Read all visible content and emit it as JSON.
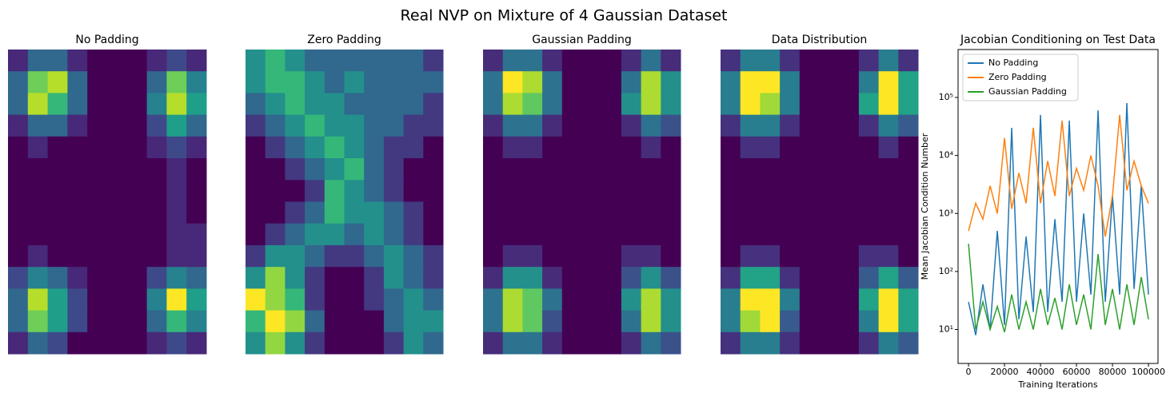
{
  "title": "Real NVP on Mixture of 4 Gaussian Dataset",
  "chart_data": [
    {
      "type": "heatmap",
      "title": "No Padding",
      "colormap": "viridis",
      "values": [
        [
          1,
          3,
          3,
          1,
          0,
          0,
          0,
          1,
          2,
          1
        ],
        [
          3,
          7,
          8,
          3,
          0,
          0,
          0,
          3,
          7,
          4
        ],
        [
          3,
          8,
          6,
          3,
          0,
          0,
          0,
          4,
          8,
          5
        ],
        [
          1,
          3,
          3,
          1,
          0,
          0,
          0,
          2,
          5,
          3
        ],
        [
          0,
          1,
          0,
          0,
          0,
          0,
          0,
          1,
          2,
          1
        ],
        [
          0,
          0,
          0,
          0,
          0,
          0,
          0,
          0,
          1,
          0
        ],
        [
          0,
          0,
          0,
          0,
          0,
          0,
          0,
          0,
          1,
          0
        ],
        [
          0,
          0,
          0,
          0,
          0,
          0,
          0,
          0,
          1,
          0
        ],
        [
          0,
          0,
          0,
          0,
          0,
          0,
          0,
          0,
          1,
          1
        ],
        [
          0,
          1,
          0,
          0,
          0,
          0,
          0,
          0,
          1,
          1
        ],
        [
          2,
          4,
          3,
          1,
          0,
          0,
          0,
          2,
          4,
          3
        ],
        [
          3,
          8,
          5,
          2,
          0,
          0,
          0,
          4,
          9,
          5
        ],
        [
          3,
          7,
          5,
          2,
          0,
          0,
          0,
          3,
          6,
          4
        ],
        [
          1,
          3,
          2,
          0,
          0,
          0,
          0,
          1,
          2,
          1
        ]
      ]
    },
    {
      "type": "heatmap",
      "title": "Zero Padding",
      "colormap": "viridis",
      "values": [
        [
          3,
          4,
          3,
          2,
          2,
          2,
          2,
          2,
          2,
          1
        ],
        [
          3,
          4,
          4,
          3,
          2,
          3,
          2,
          2,
          2,
          2
        ],
        [
          2,
          3,
          4,
          3,
          3,
          2,
          2,
          2,
          2,
          1
        ],
        [
          1,
          2,
          3,
          4,
          3,
          3,
          2,
          2,
          1,
          1
        ],
        [
          0,
          1,
          2,
          3,
          4,
          3,
          2,
          1,
          1,
          0
        ],
        [
          0,
          0,
          1,
          2,
          3,
          4,
          2,
          1,
          0,
          0
        ],
        [
          0,
          0,
          0,
          1,
          4,
          3,
          2,
          1,
          0,
          0
        ],
        [
          0,
          0,
          1,
          2,
          4,
          3,
          3,
          2,
          1,
          0
        ],
        [
          0,
          1,
          2,
          3,
          3,
          2,
          3,
          2,
          1,
          0
        ],
        [
          1,
          3,
          3,
          2,
          1,
          1,
          2,
          3,
          2,
          1
        ],
        [
          3,
          5,
          3,
          1,
          0,
          0,
          1,
          3,
          2,
          1
        ],
        [
          6,
          5,
          4,
          1,
          0,
          0,
          1,
          2,
          3,
          2
        ],
        [
          4,
          6,
          5,
          2,
          0,
          0,
          0,
          2,
          3,
          3
        ],
        [
          3,
          5,
          3,
          1,
          0,
          0,
          0,
          1,
          3,
          2
        ]
      ]
    },
    {
      "type": "heatmap",
      "title": "Gaussian Padding",
      "colormap": "viridis",
      "values": [
        [
          1,
          3,
          3,
          1,
          0,
          0,
          0,
          1,
          3,
          1
        ],
        [
          3,
          8,
          7,
          3,
          0,
          0,
          0,
          3,
          7,
          4
        ],
        [
          3,
          7,
          6,
          3,
          0,
          0,
          0,
          4,
          7,
          4
        ],
        [
          1,
          3,
          3,
          1,
          0,
          0,
          0,
          1,
          3,
          2
        ],
        [
          0,
          1,
          1,
          0,
          0,
          0,
          0,
          0,
          1,
          0
        ],
        [
          0,
          0,
          0,
          0,
          0,
          0,
          0,
          0,
          0,
          0
        ],
        [
          0,
          0,
          0,
          0,
          0,
          0,
          0,
          0,
          0,
          0
        ],
        [
          0,
          0,
          0,
          0,
          0,
          0,
          0,
          0,
          0,
          0
        ],
        [
          0,
          0,
          0,
          0,
          0,
          0,
          0,
          0,
          0,
          0
        ],
        [
          0,
          1,
          1,
          0,
          0,
          0,
          0,
          1,
          1,
          0
        ],
        [
          1,
          4,
          4,
          1,
          0,
          0,
          0,
          2,
          4,
          2
        ],
        [
          3,
          7,
          6,
          3,
          0,
          0,
          0,
          4,
          7,
          4
        ],
        [
          3,
          7,
          6,
          2,
          0,
          0,
          0,
          3,
          7,
          4
        ],
        [
          1,
          3,
          3,
          1,
          0,
          0,
          0,
          1,
          3,
          2
        ]
      ]
    },
    {
      "type": "heatmap",
      "title": "Data Distribution",
      "colormap": "viridis",
      "values": [
        [
          1,
          3,
          3,
          1,
          0,
          0,
          0,
          1,
          3,
          1
        ],
        [
          3,
          7,
          7,
          3,
          0,
          0,
          0,
          3,
          7,
          4
        ],
        [
          3,
          7,
          6,
          3,
          0,
          0,
          0,
          4,
          7,
          4
        ],
        [
          1,
          3,
          3,
          1,
          0,
          0,
          0,
          1,
          3,
          2
        ],
        [
          0,
          1,
          1,
          0,
          0,
          0,
          0,
          0,
          1,
          0
        ],
        [
          0,
          0,
          0,
          0,
          0,
          0,
          0,
          0,
          0,
          0
        ],
        [
          0,
          0,
          0,
          0,
          0,
          0,
          0,
          0,
          0,
          0
        ],
        [
          0,
          0,
          0,
          0,
          0,
          0,
          0,
          0,
          0,
          0
        ],
        [
          0,
          0,
          0,
          0,
          0,
          0,
          0,
          0,
          0,
          0
        ],
        [
          0,
          1,
          1,
          0,
          0,
          0,
          0,
          1,
          1,
          0
        ],
        [
          1,
          4,
          4,
          1,
          0,
          0,
          0,
          2,
          4,
          2
        ],
        [
          3,
          7,
          7,
          3,
          0,
          0,
          0,
          4,
          7,
          4
        ],
        [
          3,
          6,
          7,
          2,
          0,
          0,
          0,
          3,
          7,
          4
        ],
        [
          1,
          3,
          3,
          1,
          0,
          0,
          0,
          1,
          3,
          2
        ]
      ]
    },
    {
      "type": "line",
      "title": "Jacobian Conditioning on Test Data",
      "x_label": "Training Iterations",
      "y_label": "Mean Jacobian Condition Number",
      "log_y": true,
      "legend": "upper-left",
      "x": [
        0,
        4000,
        8000,
        12000,
        16000,
        20000,
        24000,
        28000,
        32000,
        36000,
        40000,
        44000,
        48000,
        52000,
        56000,
        60000,
        64000,
        68000,
        72000,
        76000,
        80000,
        84000,
        88000,
        92000,
        96000,
        100000
      ],
      "xlim": [
        -5800,
        105300
      ],
      "xticks": [
        0,
        20000,
        40000,
        60000,
        80000,
        100000
      ],
      "ylim": [
        2.6,
        670000
      ],
      "yticks": [
        {
          "value": 10,
          "label": "10¹"
        },
        {
          "value": 100,
          "label": "10²"
        },
        {
          "value": 1000,
          "label": "10³"
        },
        {
          "value": 10000,
          "label": "10⁴"
        },
        {
          "value": 100000,
          "label": "10⁵"
        }
      ],
      "series": [
        {
          "name": "No Padding",
          "color": "#1f77b4",
          "values": [
            30,
            8,
            60,
            10,
            500,
            12,
            30000,
            15,
            400,
            20,
            50000,
            20,
            800,
            30,
            40000,
            30,
            1000,
            40,
            60000,
            30,
            2000,
            40,
            80000,
            50,
            3000,
            40
          ]
        },
        {
          "name": "Zero Padding",
          "color": "#ff7f0e",
          "values": [
            500,
            1500,
            800,
            3000,
            1000,
            20000,
            1200,
            5000,
            1500,
            30000,
            1500,
            8000,
            2000,
            40000,
            2000,
            6000,
            2500,
            10000,
            3000,
            400,
            2000,
            50000,
            2500,
            8000,
            3000,
            1500
          ]
        },
        {
          "name": "Gaussian Padding",
          "color": "#2ca02c",
          "values": [
            300,
            10,
            30,
            10,
            25,
            9,
            40,
            10,
            30,
            10,
            50,
            12,
            35,
            10,
            60,
            12,
            40,
            10,
            200,
            12,
            50,
            10,
            60,
            12,
            80,
            15
          ]
        }
      ]
    }
  ]
}
